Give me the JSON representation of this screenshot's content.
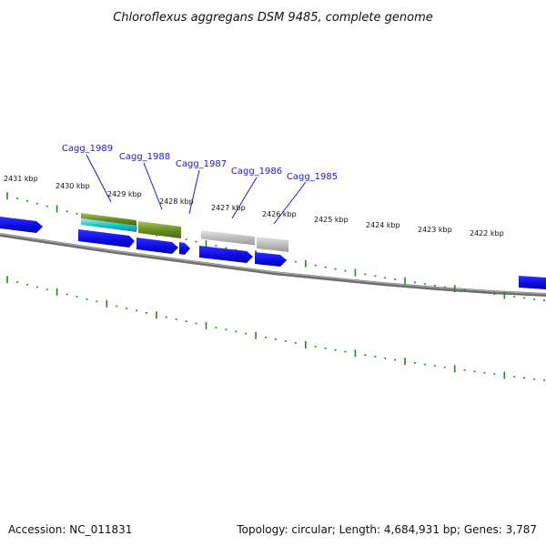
{
  "title": "Chloroflexus aggregans DSM 9485, complete genome",
  "footer": {
    "accession": "Accession: NC_011831",
    "summary": "Topology: circular; Length: 4,684,931 bp; Genes: 3,787"
  },
  "kbp_labels": [
    "2431 kbp",
    "2430 kbp",
    "2429 kbp",
    "2428 kbp",
    "2427 kbp",
    "2426 kbp",
    "2425 kbp",
    "2424 kbp",
    "2423 kbp",
    "2422 kbp"
  ],
  "gene_labels": [
    "Cagg_1989",
    "Cagg_1988",
    "Cagg_1987",
    "Cagg_1986",
    "Cagg_1985"
  ],
  "colors": {
    "backbone": "#7a7a7a",
    "tick": "#1e8a1e",
    "cds_blue": "#1010ee",
    "cog_olive": "#6b8e23",
    "cog_cyan": "#18c8c8",
    "cog_gray": "#b8b8b8",
    "leader": "#1a1acc"
  }
}
